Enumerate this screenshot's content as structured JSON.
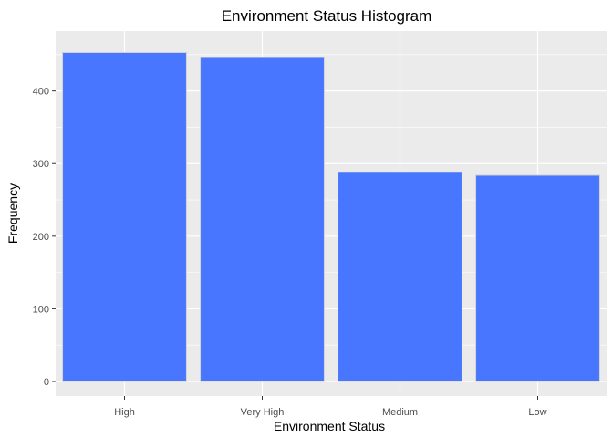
{
  "chart_data": {
    "type": "bar",
    "title": "Environment Status Histogram",
    "xlabel": "Environment Status",
    "ylabel": "Frequency",
    "categories": [
      "High",
      "Very High",
      "Medium",
      "Low"
    ],
    "values": [
      453,
      446,
      288,
      284
    ],
    "ylim": [
      0,
      485
    ],
    "yticks": [
      0,
      100,
      200,
      300,
      400
    ],
    "grid": true,
    "colors": {
      "bar_fill": "#4876FF",
      "bar_outline": "#D3D3D3",
      "panel_background": "#EBEBEB",
      "gridline": "#FFFFFF"
    }
  }
}
